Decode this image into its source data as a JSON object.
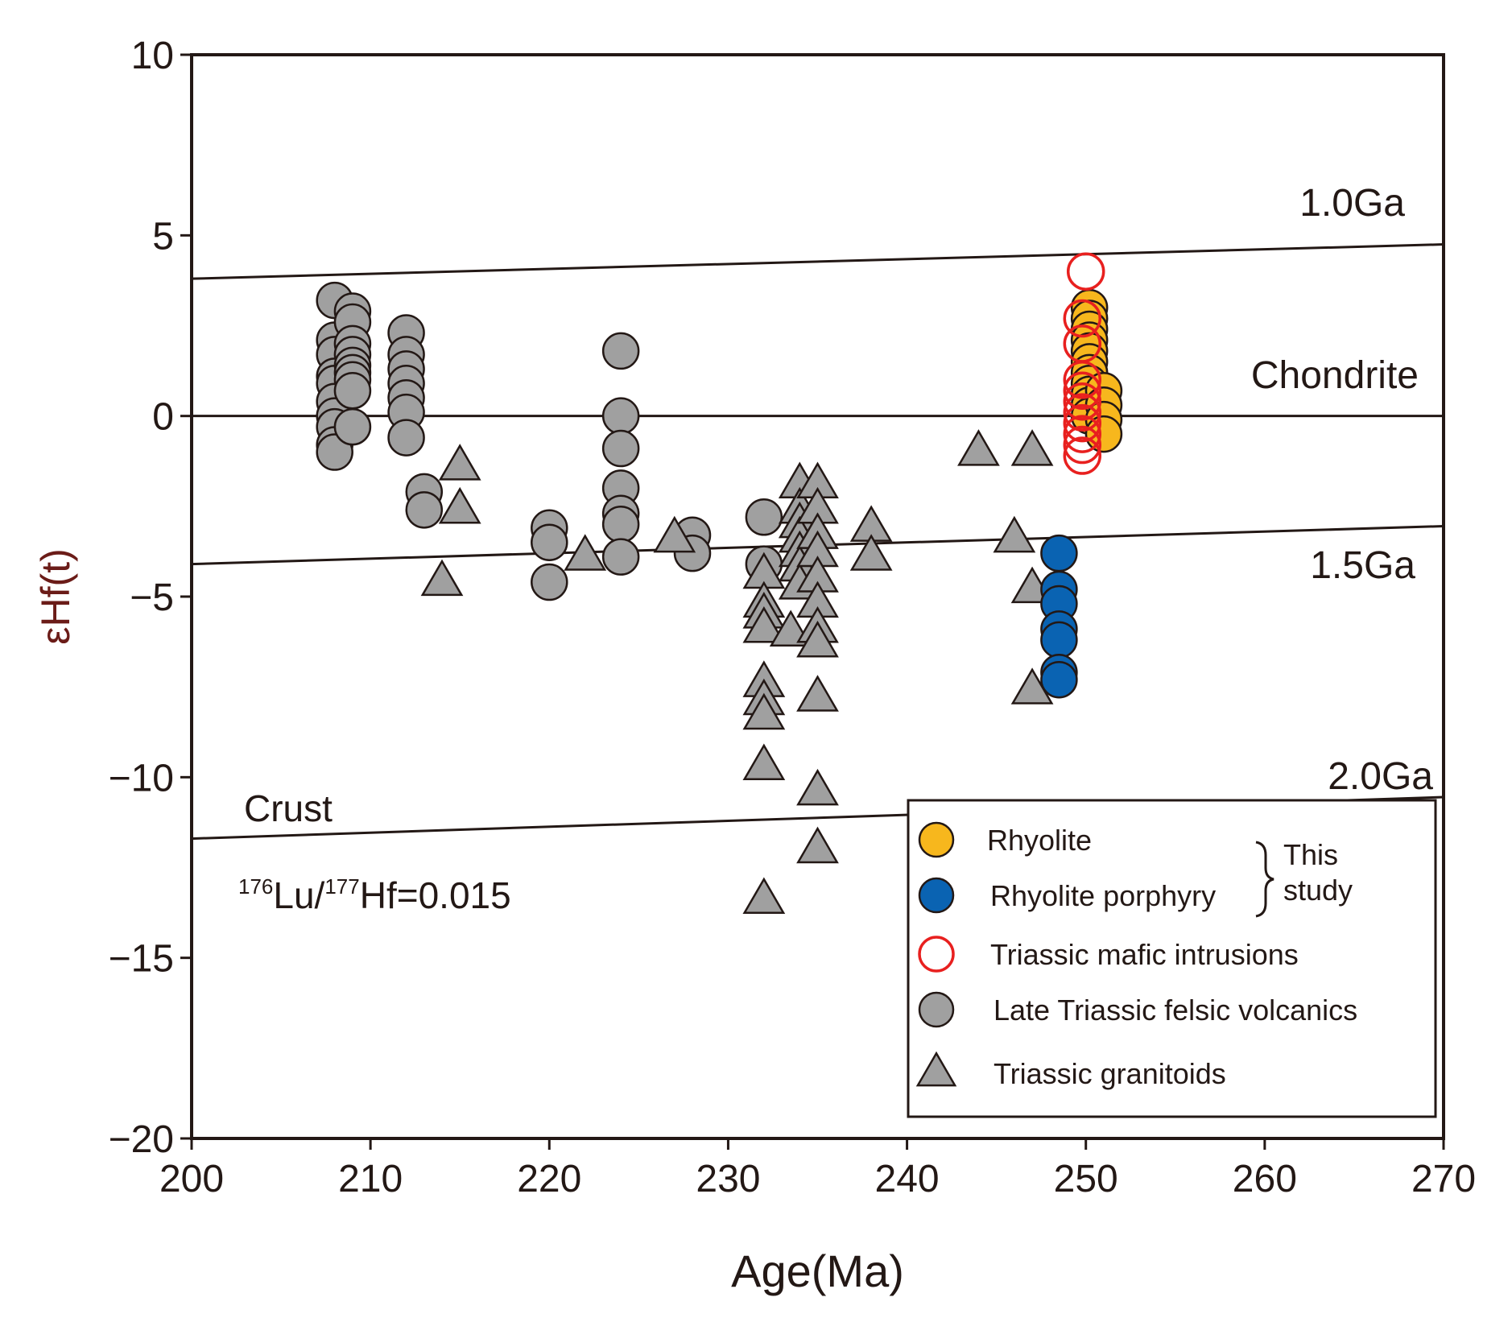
{
  "chart_data": {
    "type": "scatter",
    "xlabel": "Age(Ma)",
    "ylabel": "εHf(t)",
    "xlim": [
      200,
      270
    ],
    "ylim": [
      -20,
      10
    ],
    "xticks": [
      200,
      210,
      220,
      230,
      240,
      250,
      260,
      270
    ],
    "yticks": [
      10,
      5,
      0,
      -5,
      -10,
      -15,
      -20
    ],
    "xtick_labels": [
      "200",
      "210",
      "220",
      "230",
      "240",
      "250",
      "260",
      "270"
    ],
    "ytick_labels": [
      "10",
      "5",
      "0",
      "−5",
      "−10",
      "−15",
      "−20"
    ],
    "grid": false,
    "legend_position": "bottom-right",
    "reference_lines": [
      {
        "label": "1.0Ga",
        "x": [
          200,
          270
        ],
        "y": [
          3.8,
          4.75
        ]
      },
      {
        "label": "Chondrite",
        "x": [
          200,
          270
        ],
        "y": [
          0,
          0
        ]
      },
      {
        "label": "1.5Ga",
        "x": [
          200,
          270
        ],
        "y": [
          -4.1,
          -3.05
        ]
      },
      {
        "label": "2.0Ga",
        "x": [
          200,
          270
        ],
        "y": [
          -11.7,
          -10.55
        ]
      }
    ],
    "annotations": {
      "crust": "Crust",
      "ratio_sup1": "176",
      "ratio_mid1": "Lu/",
      "ratio_sup2": "177",
      "ratio_mid2": "Hf=0.015"
    },
    "legend_group_label": [
      "This",
      "study"
    ],
    "series": [
      {
        "name": "Late  Triassic felsic volcanics",
        "marker": "circle",
        "fill": "#a0a0a0",
        "stroke": "#231815",
        "points": [
          [
            208,
            3.2
          ],
          [
            208,
            2.1
          ],
          [
            208,
            1.7
          ],
          [
            208,
            1.1
          ],
          [
            208,
            0.9
          ],
          [
            208,
            0.4
          ],
          [
            208,
            0
          ],
          [
            208,
            -0.3
          ],
          [
            208,
            -0.8
          ],
          [
            208,
            -1
          ],
          [
            209,
            2.9
          ],
          [
            209,
            2.6
          ],
          [
            209,
            2.0
          ],
          [
            209,
            1.7
          ],
          [
            209,
            1.4
          ],
          [
            209,
            1.2
          ],
          [
            209,
            1.0
          ],
          [
            209,
            0.7
          ],
          [
            209,
            -0.3
          ],
          [
            212,
            2.3
          ],
          [
            212,
            1.7
          ],
          [
            212,
            1.3
          ],
          [
            212,
            0.9
          ],
          [
            212,
            0.5
          ],
          [
            212,
            0.1
          ],
          [
            212,
            -0.6
          ],
          [
            213,
            -2.1
          ],
          [
            213,
            -2.6
          ],
          [
            220,
            -3.1
          ],
          [
            220,
            -3.5
          ],
          [
            220,
            -4.6
          ],
          [
            224,
            1.8
          ],
          [
            224,
            0
          ],
          [
            224,
            -0.9
          ],
          [
            224,
            -2
          ],
          [
            224,
            -2.7
          ],
          [
            224,
            -3.0
          ],
          [
            224,
            -3.9
          ],
          [
            228,
            -3.3
          ],
          [
            228,
            -3.8
          ],
          [
            232,
            -2.8
          ],
          [
            232,
            -4.1
          ]
        ]
      },
      {
        "name": "Triassic granitoids",
        "marker": "triangle",
        "fill": "#a0a0a0",
        "stroke": "#231815",
        "points": [
          [
            215,
            -1.4
          ],
          [
            215,
            -2.6
          ],
          [
            214,
            -4.6
          ],
          [
            222,
            -3.9
          ],
          [
            227,
            -3.4
          ],
          [
            232,
            -4.4
          ],
          [
            232,
            -5.2
          ],
          [
            232,
            -5.5
          ],
          [
            232,
            -5.9
          ],
          [
            232,
            -7.4
          ],
          [
            232,
            -7.9
          ],
          [
            232,
            -8.3
          ],
          [
            232,
            -9.7
          ],
          [
            232,
            -13.4
          ],
          [
            234,
            -1.9
          ],
          [
            234,
            -2.6
          ],
          [
            234,
            -3.0
          ],
          [
            234,
            -3.4
          ],
          [
            234,
            -3.8
          ],
          [
            234,
            -4.2
          ],
          [
            234,
            -4.7
          ],
          [
            233.5,
            -6.0
          ],
          [
            235,
            -1.9
          ],
          [
            235,
            -2.6
          ],
          [
            235,
            -3.3
          ],
          [
            235,
            -3.8
          ],
          [
            235,
            -4.5
          ],
          [
            235,
            -5.2
          ],
          [
            235,
            -5.9
          ],
          [
            235,
            -6.3
          ],
          [
            235,
            -7.8
          ],
          [
            235,
            -10.4
          ],
          [
            235,
            -12.0
          ],
          [
            238,
            -3.1
          ],
          [
            238,
            -3.9
          ],
          [
            244,
            -1.0
          ],
          [
            247,
            -1.0
          ],
          [
            246,
            -3.4
          ],
          [
            247,
            -4.8
          ],
          [
            247,
            -7.6
          ]
        ]
      },
      {
        "name": "Rhyolite",
        "marker": "circle",
        "fill": "#f7b71d",
        "stroke": "#231815",
        "points": [
          [
            250.2,
            3.0
          ],
          [
            250.2,
            2.7
          ],
          [
            250.2,
            2.4
          ],
          [
            250.2,
            2.1
          ],
          [
            250.2,
            1.8
          ],
          [
            250.2,
            1.5
          ],
          [
            250.2,
            1.2
          ],
          [
            250.2,
            0.9
          ],
          [
            250.2,
            0.6
          ],
          [
            250.2,
            0.3
          ],
          [
            250.2,
            0
          ],
          [
            251,
            0.7
          ],
          [
            251,
            0.3
          ],
          [
            251,
            -0.1
          ],
          [
            251,
            -0.5
          ]
        ]
      },
      {
        "name": "Rhyolite porphyry",
        "marker": "circle",
        "fill": "#0a63b2",
        "stroke": "#231815",
        "points": [
          [
            248.5,
            -3.8
          ],
          [
            248.5,
            -4.8
          ],
          [
            248.5,
            -5.2
          ],
          [
            248.5,
            -5.9
          ],
          [
            248.5,
            -6.2
          ],
          [
            248.5,
            -7.1
          ],
          [
            248.5,
            -7.3
          ]
        ]
      },
      {
        "name": "Triassic mafic intrusions",
        "marker": "open-circle",
        "fill": "none",
        "stroke": "#e8201f",
        "points": [
          [
            250,
            4.0
          ],
          [
            249.8,
            2.7
          ],
          [
            249.8,
            2.0
          ],
          [
            249.8,
            1.0
          ],
          [
            249.8,
            0.7
          ],
          [
            249.8,
            0.4
          ],
          [
            249.8,
            0.1
          ],
          [
            249.8,
            -0.2
          ],
          [
            249.8,
            -0.5
          ],
          [
            249.8,
            -0.8
          ],
          [
            249.8,
            -1.1
          ]
        ]
      }
    ],
    "legend_order": [
      2,
      3,
      4,
      0,
      1
    ]
  }
}
